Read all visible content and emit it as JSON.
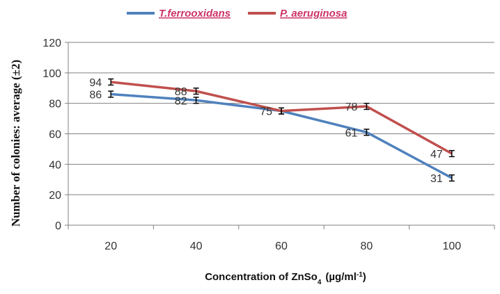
{
  "chart_data": {
    "type": "line",
    "categories": [
      "20",
      "40",
      "60",
      "80",
      "100"
    ],
    "x": [
      20,
      40,
      60,
      80,
      100
    ],
    "series": [
      {
        "name": "T.ferrooxidans",
        "values": [
          86,
          82,
          75,
          61,
          31
        ],
        "color": "#4f81bd",
        "error": 2
      },
      {
        "name": "P. aeruginosa",
        "values": [
          94,
          88,
          75,
          78,
          47
        ],
        "color": "#c0504d",
        "error": 2
      }
    ],
    "data_labels": [
      {
        "series": 1,
        "index": 0,
        "text": "94"
      },
      {
        "series": 0,
        "index": 0,
        "text": "86"
      },
      {
        "series": 1,
        "index": 1,
        "text": "88"
      },
      {
        "series": 0,
        "index": 1,
        "text": "82"
      },
      {
        "series": 0,
        "index": 2,
        "text": "75"
      },
      {
        "series": 0,
        "index": 3,
        "text": "61"
      },
      {
        "series": 1,
        "index": 3,
        "text": "78"
      },
      {
        "series": 1,
        "index": 4,
        "text": "47"
      },
      {
        "series": 0,
        "index": 4,
        "text": "31"
      }
    ],
    "xlabel_main": "Concentration of ZnSo",
    "xlabel_sub": "4",
    "xlabel_unit": "(µg/ml",
    "xlabel_sup": "-1",
    "xlabel_end": ")",
    "ylabel": "Number  of colonies: average (±2)",
    "ylim": [
      0,
      120
    ],
    "yticks": [
      "0",
      "20",
      "40",
      "60",
      "80",
      "100",
      "120"
    ],
    "grid": true,
    "legend_position": "top"
  }
}
